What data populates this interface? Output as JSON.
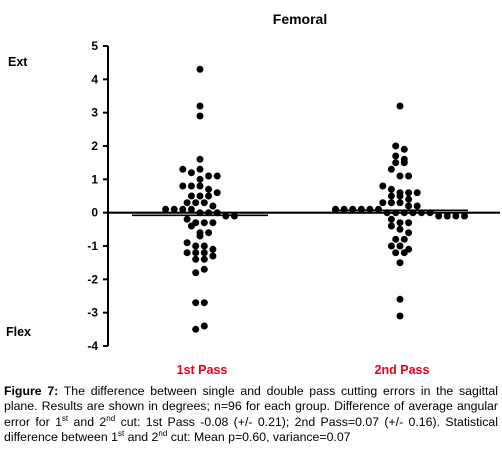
{
  "chart_data": {
    "type": "scatter",
    "title": "Femoral",
    "ext_label": "Ext",
    "flex_label": "Flex",
    "ylim": [
      -4,
      5
    ],
    "yticks": [
      "5",
      "4",
      "3",
      "2",
      "1",
      "0",
      "-1",
      "-2",
      "-3",
      "-4"
    ],
    "categories": [
      "1st Pass",
      "2nd Pass"
    ],
    "zero_line": true,
    "grid": false,
    "colors": {
      "points": "#000000",
      "category_labels": "#e8001c"
    },
    "series": [
      {
        "category": "1st Pass",
        "mean": -0.08,
        "values": [
          4.3,
          3.2,
          2.9,
          1.6,
          1.3,
          1.2,
          1.3,
          1.1,
          1.1,
          1.0,
          0.8,
          0.8,
          0.8,
          0.7,
          0.6,
          0.5,
          0.5,
          0.5,
          0.3,
          0.3,
          0.3,
          0.2,
          0.1,
          0.1,
          0.1,
          0.1,
          0.0,
          0.0,
          0.0,
          -0.1,
          -0.1,
          -0.2,
          -0.3,
          -0.3,
          -0.3,
          -0.4,
          -0.6,
          -0.6,
          -0.7,
          -0.9,
          -1.0,
          -1.0,
          -1.1,
          -1.2,
          -1.2,
          -1.2,
          -1.3,
          -1.4,
          -1.4,
          -1.8,
          -1.7,
          -2.7,
          -2.7,
          -3.5,
          -3.4
        ]
      },
      {
        "category": "2nd Pass",
        "mean": 0.07,
        "values": [
          3.2,
          2.0,
          1.9,
          1.7,
          1.6,
          1.5,
          1.5,
          1.3,
          1.1,
          1.1,
          0.8,
          0.7,
          0.6,
          0.6,
          0.6,
          0.5,
          0.5,
          0.4,
          0.3,
          0.3,
          0.3,
          0.2,
          0.2,
          0.1,
          0.1,
          0.1,
          0.1,
          0.1,
          0.1,
          0.0,
          0.0,
          0.0,
          0.0,
          0.0,
          0.0,
          -0.1,
          -0.1,
          -0.1,
          -0.1,
          -0.2,
          -0.3,
          -0.3,
          -0.4,
          -0.5,
          -0.6,
          -0.8,
          -0.8,
          -1.0,
          -1.0,
          -1.1,
          -1.2,
          -1.2,
          -1.5,
          -2.6,
          -3.1
        ]
      }
    ]
  },
  "caption": {
    "figure_label": "Figure 7:",
    "text": " The difference between single and double pass cutting errors in the sagittal plane. Results are shown in degrees; n=96 for each group. Difference of average angular error for 1st and 2nd cut: 1st Pass -0.08 (+/- 0.21); 2nd Pass=0.07 (+/- 0.16).  Statistical difference between 1st and 2nd cut: Mean p=0.60, variance=0.07"
  }
}
